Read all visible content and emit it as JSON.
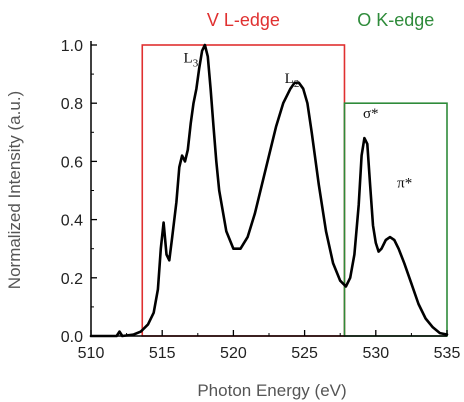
{
  "chart_data": {
    "type": "line",
    "xlabel": "Photon Energy (eV)",
    "ylabel": "Normalized Intensity (a.u.)",
    "xlim": [
      510,
      535
    ],
    "ylim": [
      0.0,
      1.0
    ],
    "xticks": [
      "510",
      "515",
      "520",
      "525",
      "530",
      "535"
    ],
    "yticks": [
      "0.0",
      "0.2",
      "0.4",
      "0.6",
      "0.8",
      "1.0"
    ],
    "grid": false,
    "regions": [
      {
        "label": "V L-edge",
        "color": "#e03030",
        "x": [
          513.6,
          527.8
        ],
        "y": [
          0.0,
          1.0
        ]
      },
      {
        "label": "O K-edge",
        "color": "#2e8b3a",
        "x": [
          527.8,
          535.0
        ],
        "y": [
          0.0,
          0.8
        ]
      }
    ],
    "annotations": [
      {
        "main": "L",
        "sub": "3",
        "x": 516.5,
        "y": 0.94
      },
      {
        "main": "L",
        "sub": "2",
        "x": 523.6,
        "y": 0.87
      },
      {
        "main": "σ*",
        "sub": "",
        "x": 529.1,
        "y": 0.75
      },
      {
        "main": "π*",
        "sub": "",
        "x": 531.5,
        "y": 0.51
      }
    ],
    "series": [
      {
        "color": "#000000",
        "x": [
          510,
          511,
          511.8,
          512.0,
          512.2,
          513,
          513.5,
          514.0,
          514.4,
          514.7,
          514.9,
          515.1,
          515.3,
          515.5,
          515.7,
          516.0,
          516.2,
          516.4,
          516.6,
          516.8,
          517.0,
          517.2,
          517.4,
          517.6,
          517.8,
          518.0,
          518.2,
          518.4,
          518.6,
          518.8,
          519.0,
          519.5,
          520.0,
          520.5,
          521.0,
          521.5,
          522.0,
          522.5,
          523.0,
          523.5,
          524.0,
          524.3,
          524.6,
          524.9,
          525.2,
          525.5,
          526.0,
          526.5,
          527.0,
          527.5,
          527.9,
          528.2,
          528.5,
          528.8,
          529.0,
          529.2,
          529.4,
          529.6,
          529.8,
          530.0,
          530.2,
          530.4,
          530.7,
          531.0,
          531.3,
          531.6,
          532.0,
          532.5,
          533.0,
          533.5,
          534.0,
          534.5,
          535.0
        ],
        "y": [
          0.0,
          0.0,
          0.0,
          0.015,
          0.0,
          0.005,
          0.015,
          0.04,
          0.08,
          0.16,
          0.3,
          0.39,
          0.28,
          0.26,
          0.34,
          0.46,
          0.58,
          0.62,
          0.6,
          0.64,
          0.73,
          0.8,
          0.85,
          0.92,
          0.98,
          1.0,
          0.96,
          0.85,
          0.72,
          0.6,
          0.5,
          0.36,
          0.3,
          0.3,
          0.34,
          0.42,
          0.52,
          0.62,
          0.72,
          0.8,
          0.85,
          0.87,
          0.87,
          0.85,
          0.8,
          0.7,
          0.52,
          0.36,
          0.25,
          0.19,
          0.17,
          0.2,
          0.28,
          0.45,
          0.62,
          0.68,
          0.66,
          0.52,
          0.38,
          0.32,
          0.29,
          0.3,
          0.33,
          0.34,
          0.33,
          0.3,
          0.25,
          0.18,
          0.11,
          0.06,
          0.03,
          0.01,
          0.005
        ]
      }
    ]
  }
}
